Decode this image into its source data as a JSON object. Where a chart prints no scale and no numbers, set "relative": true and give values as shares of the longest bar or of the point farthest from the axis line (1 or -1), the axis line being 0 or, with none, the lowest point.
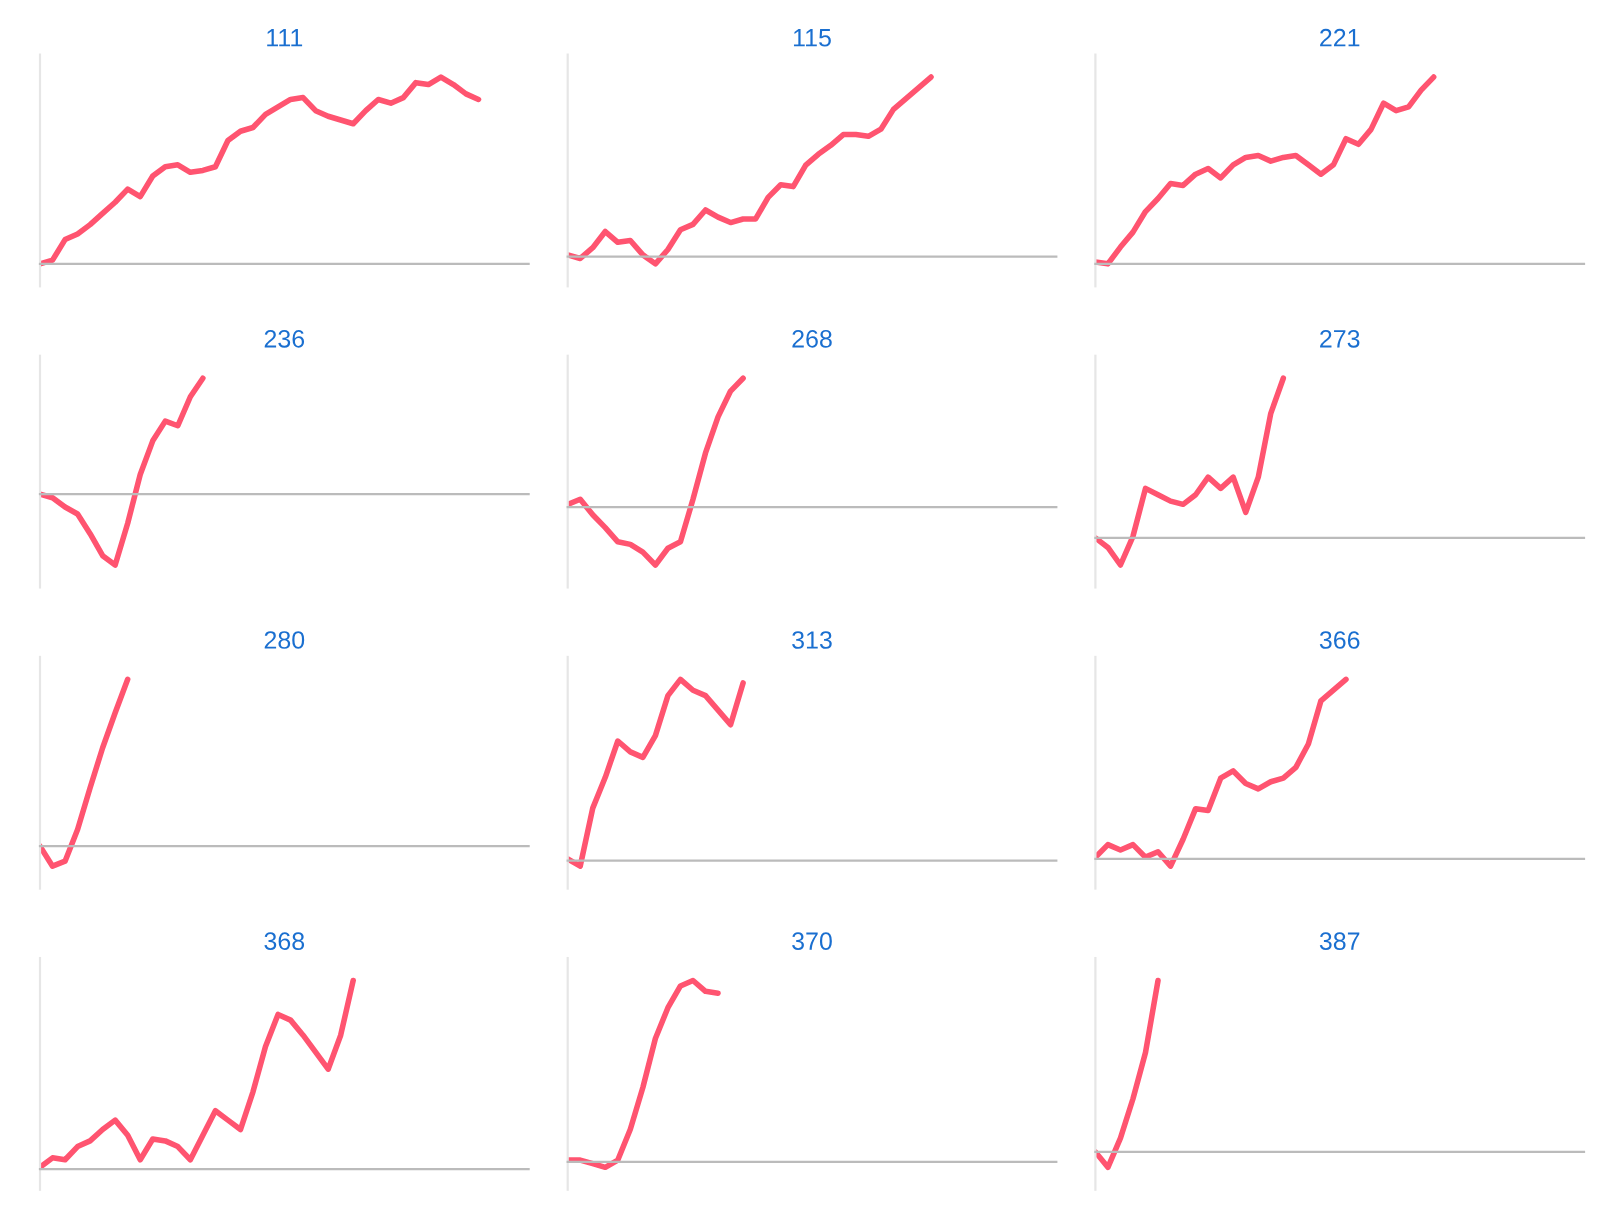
{
  "chart_data": [
    {
      "type": "line",
      "title": "111",
      "relative": true,
      "categories": [
        null,
        null,
        null,
        null,
        null,
        null,
        null,
        null,
        null,
        null,
        null,
        null,
        null,
        null,
        null,
        null,
        null,
        null,
        null,
        null,
        null,
        null,
        null,
        null,
        null,
        null,
        null,
        null,
        null,
        null,
        null,
        null,
        null,
        null,
        null,
        null,
        null,
        null,
        null,
        null
      ],
      "series": [
        {
          "color": "#ff5470",
          "values": [
            0,
            0.02,
            0.13,
            0.16,
            0.21,
            0.27,
            0.33,
            0.4,
            0.36,
            0.47,
            0.52,
            0.53,
            0.49,
            0.5,
            0.52,
            0.66,
            0.71,
            0.73,
            0.8,
            0.84,
            0.88,
            0.89,
            0.82,
            0.79,
            0.77,
            0.75,
            0.82,
            0.88,
            0.86,
            0.89,
            0.97,
            0.96,
            1.0,
            0.96,
            0.91,
            0.88,
            null,
            null,
            null,
            null
          ]
        }
      ]
    },
    {
      "type": "line",
      "title": "115",
      "relative": true,
      "categories": [
        null,
        null,
        null,
        null,
        null,
        null,
        null,
        null,
        null,
        null,
        null,
        null,
        null,
        null,
        null,
        null,
        null,
        null,
        null,
        null,
        null,
        null,
        null,
        null,
        null,
        null,
        null,
        null,
        null,
        null,
        null,
        null,
        null,
        null,
        null,
        null,
        null,
        null,
        null,
        null
      ],
      "series": [
        {
          "color": "#ff5470",
          "values": [
            0.01,
            -0.01,
            0.05,
            0.14,
            0.08,
            0.09,
            0.01,
            -0.04,
            0.04,
            0.15,
            0.18,
            0.26,
            0.22,
            0.19,
            0.21,
            0.21,
            0.33,
            0.4,
            0.39,
            0.51,
            0.57,
            0.62,
            0.68,
            0.68,
            0.67,
            0.71,
            0.82,
            0.88,
            0.94,
            1.0,
            null,
            null,
            null,
            null,
            null,
            null,
            null,
            null,
            null,
            null
          ]
        }
      ]
    },
    {
      "type": "line",
      "title": "221",
      "relative": true,
      "categories": [
        null,
        null,
        null,
        null,
        null,
        null,
        null,
        null,
        null,
        null,
        null,
        null,
        null,
        null,
        null,
        null,
        null,
        null,
        null,
        null,
        null,
        null,
        null,
        null,
        null,
        null,
        null,
        null,
        null,
        null,
        null,
        null,
        null,
        null,
        null,
        null,
        null,
        null,
        null,
        null
      ],
      "series": [
        {
          "color": "#ff5470",
          "values": [
            0.01,
            0,
            0.09,
            0.17,
            0.28,
            0.35,
            0.43,
            0.42,
            0.48,
            0.51,
            0.46,
            0.53,
            0.57,
            0.58,
            0.55,
            0.57,
            0.58,
            0.53,
            0.48,
            0.53,
            0.67,
            0.64,
            0.72,
            0.86,
            0.82,
            0.84,
            0.93,
            1.0,
            null,
            null,
            null,
            null,
            null,
            null,
            null,
            null,
            null,
            null,
            null,
            null
          ]
        }
      ]
    },
    {
      "type": "line",
      "title": "236",
      "relative": true,
      "categories": [
        null,
        null,
        null,
        null,
        null,
        null,
        null,
        null,
        null,
        null,
        null,
        null,
        null,
        null,
        null,
        null,
        null,
        null,
        null,
        null,
        null,
        null,
        null,
        null,
        null,
        null,
        null,
        null,
        null,
        null,
        null,
        null,
        null,
        null,
        null,
        null,
        null,
        null,
        null,
        null
      ],
      "series": [
        {
          "color": "#ff5470",
          "values": [
            0,
            -0.03,
            -0.11,
            -0.17,
            -0.34,
            -0.53,
            -0.61,
            -0.25,
            0.17,
            0.46,
            0.63,
            0.59,
            0.84,
            1.0,
            null,
            null,
            null,
            null,
            null,
            null,
            null,
            null,
            null,
            null,
            null,
            null,
            null,
            null,
            null,
            null,
            null,
            null,
            null,
            null,
            null,
            null,
            null,
            null,
            null,
            null
          ]
        }
      ]
    },
    {
      "type": "line",
      "title": "268",
      "relative": true,
      "categories": [
        null,
        null,
        null,
        null,
        null,
        null,
        null,
        null,
        null,
        null,
        null,
        null,
        null,
        null,
        null,
        null,
        null,
        null,
        null,
        null,
        null,
        null,
        null,
        null,
        null,
        null,
        null,
        null,
        null,
        null,
        null,
        null,
        null,
        null,
        null,
        null,
        null,
        null,
        null,
        null
      ],
      "series": [
        {
          "color": "#ff5470",
          "values": [
            0.02,
            0.06,
            -0.06,
            -0.16,
            -0.27,
            -0.29,
            -0.35,
            -0.45,
            -0.32,
            -0.27,
            0.06,
            0.42,
            0.7,
            0.9,
            1.0,
            null,
            null,
            null,
            null,
            null,
            null,
            null,
            null,
            null,
            null,
            null,
            null,
            null,
            null,
            null,
            null,
            null,
            null,
            null,
            null,
            null,
            null,
            null,
            null,
            null
          ]
        }
      ]
    },
    {
      "type": "line",
      "title": "273",
      "relative": true,
      "categories": [
        null,
        null,
        null,
        null,
        null,
        null,
        null,
        null,
        null,
        null,
        null,
        null,
        null,
        null,
        null,
        null,
        null,
        null,
        null,
        null,
        null,
        null,
        null,
        null,
        null,
        null,
        null,
        null,
        null,
        null,
        null,
        null,
        null,
        null,
        null,
        null,
        null,
        null,
        null,
        null
      ],
      "series": [
        {
          "color": "#ff5470",
          "values": [
            0,
            -0.06,
            -0.17,
            0.01,
            0.31,
            0.27,
            0.23,
            0.21,
            0.27,
            0.38,
            0.31,
            0.38,
            0.16,
            0.38,
            0.78,
            1.0,
            null,
            null,
            null,
            null,
            null,
            null,
            null,
            null,
            null,
            null,
            null,
            null,
            null,
            null,
            null,
            null,
            null,
            null,
            null,
            null,
            null,
            null,
            null,
            null
          ]
        }
      ]
    },
    {
      "type": "line",
      "title": "280",
      "relative": true,
      "categories": [
        null,
        null,
        null,
        null,
        null,
        null,
        null,
        null,
        null,
        null,
        null,
        null,
        null,
        null,
        null,
        null,
        null,
        null,
        null,
        null,
        null,
        null,
        null,
        null,
        null,
        null,
        null,
        null,
        null,
        null,
        null,
        null,
        null,
        null,
        null,
        null,
        null,
        null,
        null,
        null
      ],
      "series": [
        {
          "color": "#ff5470",
          "values": [
            0,
            -0.12,
            -0.09,
            0.1,
            0.35,
            0.59,
            0.8,
            1.0,
            null,
            null,
            null,
            null,
            null,
            null,
            null,
            null,
            null,
            null,
            null,
            null,
            null,
            null,
            null,
            null,
            null,
            null,
            null,
            null,
            null,
            null,
            null,
            null,
            null,
            null,
            null,
            null,
            null,
            null,
            null,
            null
          ]
        }
      ]
    },
    {
      "type": "line",
      "title": "313",
      "relative": true,
      "categories": [
        null,
        null,
        null,
        null,
        null,
        null,
        null,
        null,
        null,
        null,
        null,
        null,
        null,
        null,
        null,
        null,
        null,
        null,
        null,
        null,
        null,
        null,
        null,
        null,
        null,
        null,
        null,
        null,
        null,
        null,
        null,
        null,
        null,
        null,
        null,
        null,
        null,
        null,
        null,
        null
      ],
      "series": [
        {
          "color": "#ff5470",
          "values": [
            0.01,
            -0.03,
            0.29,
            0.46,
            0.66,
            0.6,
            0.57,
            0.69,
            0.91,
            1.0,
            0.94,
            0.91,
            0.83,
            0.75,
            0.98,
            null,
            null,
            null,
            null,
            null,
            null,
            null,
            null,
            null,
            null,
            null,
            null,
            null,
            null,
            null,
            null,
            null,
            null,
            null,
            null,
            null,
            null,
            null,
            null,
            null
          ]
        }
      ]
    },
    {
      "type": "line",
      "title": "366",
      "relative": true,
      "categories": [
        null,
        null,
        null,
        null,
        null,
        null,
        null,
        null,
        null,
        null,
        null,
        null,
        null,
        null,
        null,
        null,
        null,
        null,
        null,
        null,
        null,
        null,
        null,
        null,
        null,
        null,
        null,
        null,
        null,
        null,
        null,
        null,
        null,
        null,
        null,
        null,
        null,
        null,
        null,
        null
      ],
      "series": [
        {
          "color": "#ff5470",
          "values": [
            0.01,
            0.08,
            0.05,
            0.08,
            0.01,
            0.04,
            -0.04,
            0.11,
            0.28,
            0.27,
            0.45,
            0.49,
            0.42,
            0.39,
            0.43,
            0.45,
            0.51,
            0.64,
            0.88,
            0.94,
            1.0,
            null,
            null,
            null,
            null,
            null,
            null,
            null,
            null,
            null,
            null,
            null,
            null,
            null,
            null,
            null,
            null,
            null,
            null,
            null
          ]
        }
      ]
    },
    {
      "type": "line",
      "title": "368",
      "relative": true,
      "categories": [
        null,
        null,
        null,
        null,
        null,
        null,
        null,
        null,
        null,
        null,
        null,
        null,
        null,
        null,
        null,
        null,
        null,
        null,
        null,
        null,
        null,
        null,
        null,
        null,
        null,
        null,
        null,
        null,
        null,
        null,
        null,
        null,
        null,
        null,
        null,
        null,
        null,
        null,
        null,
        null
      ],
      "series": [
        {
          "color": "#ff5470",
          "values": [
            0.01,
            0.06,
            0.05,
            0.12,
            0.15,
            0.21,
            0.26,
            0.18,
            0.05,
            0.16,
            0.15,
            0.12,
            0.05,
            0.18,
            0.31,
            0.26,
            0.21,
            0.41,
            0.65,
            0.82,
            0.79,
            0.71,
            0.62,
            0.53,
            0.71,
            1.0,
            null,
            null,
            null,
            null,
            null,
            null,
            null,
            null,
            null,
            null,
            null,
            null,
            null,
            null
          ]
        }
      ]
    },
    {
      "type": "line",
      "title": "370",
      "relative": true,
      "categories": [
        null,
        null,
        null,
        null,
        null,
        null,
        null,
        null,
        null,
        null,
        null,
        null,
        null,
        null,
        null,
        null,
        null,
        null,
        null,
        null,
        null,
        null,
        null,
        null,
        null,
        null,
        null,
        null,
        null,
        null,
        null,
        null,
        null,
        null,
        null,
        null,
        null,
        null,
        null,
        null
      ],
      "series": [
        {
          "color": "#ff5470",
          "values": [
            0.01,
            0.01,
            -0.01,
            -0.03,
            0.01,
            0.18,
            0.41,
            0.68,
            0.85,
            0.97,
            1.0,
            0.94,
            0.93,
            null,
            null,
            null,
            null,
            null,
            null,
            null,
            null,
            null,
            null,
            null,
            null,
            null,
            null,
            null,
            null,
            null,
            null,
            null,
            null,
            null,
            null,
            null,
            null,
            null,
            null,
            null
          ]
        }
      ]
    },
    {
      "type": "line",
      "title": "387",
      "relative": true,
      "categories": [
        null,
        null,
        null,
        null,
        null,
        null,
        null,
        null,
        null,
        null,
        null,
        null,
        null,
        null,
        null,
        null,
        null,
        null,
        null,
        null,
        null,
        null,
        null,
        null,
        null,
        null,
        null,
        null,
        null,
        null,
        null,
        null,
        null,
        null,
        null,
        null,
        null,
        null,
        null,
        null
      ],
      "series": [
        {
          "color": "#ff5470",
          "values": [
            0,
            -0.09,
            0.08,
            0.31,
            0.58,
            1.0,
            null,
            null,
            null,
            null,
            null,
            null,
            null,
            null,
            null,
            null,
            null,
            null,
            null,
            null,
            null,
            null,
            null,
            null,
            null,
            null,
            null,
            null,
            null,
            null,
            null,
            null,
            null,
            null,
            null,
            null,
            null,
            null,
            null,
            null
          ]
        }
      ]
    }
  ]
}
